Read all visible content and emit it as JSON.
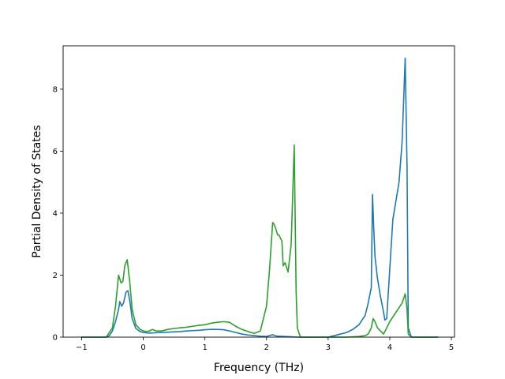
{
  "chart_data": {
    "type": "line",
    "title": "",
    "xlabel": "Frequency (THz)",
    "ylabel": "Partial Density of States",
    "xlim": [
      -1.3,
      5.05
    ],
    "ylim": [
      0,
      9.4
    ],
    "xticks": [
      -1,
      0,
      1,
      2,
      3,
      4,
      5
    ],
    "xtick_labels": [
      "−1",
      "0",
      "1",
      "2",
      "3",
      "4",
      "5"
    ],
    "yticks": [
      0,
      2,
      4,
      6,
      8
    ],
    "ytick_labels": [
      "0",
      "2",
      "4",
      "6",
      "8"
    ],
    "grid": false,
    "legend": "none",
    "series": [
      {
        "color": "#1f77b4",
        "x": [
          -1.0,
          -0.6,
          -0.55,
          -0.5,
          -0.45,
          -0.4,
          -0.38,
          -0.35,
          -0.32,
          -0.28,
          -0.25,
          -0.22,
          -0.18,
          -0.12,
          -0.05,
          0.0,
          0.1,
          0.2,
          0.3,
          0.4,
          0.5,
          0.6,
          0.7,
          0.8,
          0.9,
          1.0,
          1.1,
          1.2,
          1.3,
          1.4,
          1.5,
          1.6,
          1.7,
          1.8,
          1.9,
          2.0,
          2.05,
          2.1,
          2.15,
          2.2,
          2.3,
          2.4,
          2.5,
          2.6,
          2.8,
          3.0,
          3.1,
          3.2,
          3.3,
          3.4,
          3.5,
          3.6,
          3.65,
          3.7,
          3.72,
          3.74,
          3.76,
          3.8,
          3.85,
          3.9,
          3.92,
          3.95,
          4.0,
          4.05,
          4.1,
          4.15,
          4.2,
          4.25,
          4.28,
          4.3,
          4.35,
          4.5,
          4.78
        ],
        "y": [
          0.0,
          0.0,
          0.05,
          0.2,
          0.5,
          0.9,
          1.15,
          1.0,
          1.1,
          1.45,
          1.5,
          1.2,
          0.6,
          0.28,
          0.18,
          0.15,
          0.13,
          0.14,
          0.15,
          0.16,
          0.17,
          0.18,
          0.2,
          0.21,
          0.22,
          0.24,
          0.25,
          0.25,
          0.24,
          0.2,
          0.15,
          0.1,
          0.07,
          0.05,
          0.03,
          0.02,
          0.05,
          0.08,
          0.04,
          0.03,
          0.02,
          0.01,
          0.0,
          0.0,
          0.0,
          0.0,
          0.05,
          0.1,
          0.15,
          0.25,
          0.4,
          0.7,
          1.1,
          1.6,
          4.6,
          3.5,
          2.6,
          1.9,
          1.3,
          0.8,
          0.55,
          0.6,
          2.2,
          3.8,
          4.4,
          5.0,
          6.3,
          9.0,
          5.5,
          0.3,
          0.0,
          0.0,
          0.0
        ]
      },
      {
        "color": "#2ca02c",
        "x": [
          -1.0,
          -0.6,
          -0.5,
          -0.45,
          -0.4,
          -0.36,
          -0.33,
          -0.3,
          -0.26,
          -0.22,
          -0.18,
          -0.12,
          -0.05,
          0.0,
          0.05,
          0.1,
          0.15,
          0.2,
          0.3,
          0.4,
          0.5,
          0.6,
          0.7,
          0.8,
          0.9,
          1.0,
          1.1,
          1.2,
          1.3,
          1.4,
          1.5,
          1.6,
          1.7,
          1.8,
          1.9,
          2.0,
          2.05,
          2.1,
          2.12,
          2.15,
          2.18,
          2.2,
          2.25,
          2.27,
          2.3,
          2.35,
          2.4,
          2.45,
          2.48,
          2.5,
          2.55,
          2.7,
          3.0,
          3.3,
          3.5,
          3.6,
          3.65,
          3.7,
          3.73,
          3.76,
          3.8,
          3.85,
          3.9,
          4.0,
          4.1,
          4.2,
          4.25,
          4.28,
          4.3,
          4.35,
          4.5,
          4.78
        ],
        "y": [
          0.0,
          0.0,
          0.3,
          1.0,
          2.0,
          1.75,
          1.8,
          2.3,
          2.5,
          1.8,
          0.9,
          0.4,
          0.25,
          0.2,
          0.18,
          0.2,
          0.25,
          0.2,
          0.2,
          0.25,
          0.28,
          0.3,
          0.32,
          0.35,
          0.38,
          0.4,
          0.45,
          0.48,
          0.5,
          0.48,
          0.35,
          0.25,
          0.18,
          0.12,
          0.2,
          1.0,
          2.2,
          3.7,
          3.65,
          3.5,
          3.3,
          3.3,
          3.1,
          2.3,
          2.4,
          2.1,
          3.0,
          6.2,
          1.5,
          0.3,
          0.0,
          0.0,
          0.0,
          0.0,
          0.02,
          0.05,
          0.1,
          0.3,
          0.6,
          0.5,
          0.3,
          0.2,
          0.1,
          0.5,
          0.8,
          1.1,
          1.4,
          0.9,
          0.1,
          0.0,
          0.0,
          0.0
        ]
      }
    ]
  }
}
